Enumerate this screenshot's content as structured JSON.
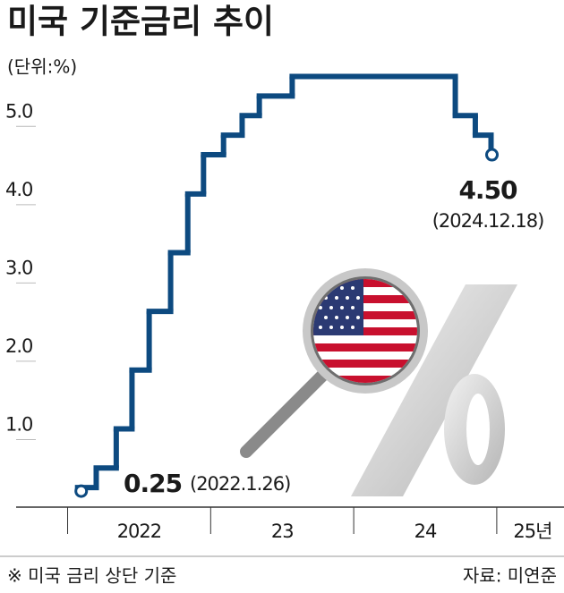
{
  "chart_data": {
    "type": "step",
    "title": "미국 기준금리 추이",
    "subtitle": "(단위:%)",
    "x": [
      2022.07,
      2022.2,
      2022.34,
      2022.45,
      2022.57,
      2022.72,
      2022.84,
      2022.95,
      2023.09,
      2023.22,
      2023.34,
      2023.57,
      2024.71,
      2024.85,
      2024.96
    ],
    "series": [
      {
        "name": "미국 기준금리",
        "color": "#0d4a80",
        "values": [
          0.25,
          0.5,
          1.0,
          1.75,
          2.5,
          3.25,
          4.0,
          4.5,
          4.75,
          5.0,
          5.25,
          5.5,
          5.0,
          4.75,
          4.5
        ],
        "value_labels": [
          "0.25",
          null,
          null,
          null,
          null,
          null,
          null,
          null,
          null,
          null,
          null,
          null,
          null,
          null,
          "4.50"
        ]
      }
    ],
    "annotations": [
      "(2022.1.26)",
      "(2024.12.18)"
    ],
    "xlim": [
      2021.64,
      2025.47
    ],
    "xticks": [
      {
        "value": 2022,
        "label": "2022"
      },
      {
        "value": 2023,
        "label": "23"
      },
      {
        "value": 2024,
        "label": "24"
      },
      {
        "value": 2025,
        "label": "25년"
      }
    ],
    "ylim": [
      0,
      5.7
    ],
    "yticks": [
      {
        "value": 1,
        "label": "1.0"
      },
      {
        "value": 2,
        "label": "2.0"
      },
      {
        "value": 3,
        "label": "3.0"
      },
      {
        "value": 4,
        "label": "4.0"
      },
      {
        "value": 5,
        "label": "5.0"
      }
    ],
    "grid": false,
    "footnote": "※ 미국 금리 상단 기준",
    "source": "자료: 미연준"
  }
}
